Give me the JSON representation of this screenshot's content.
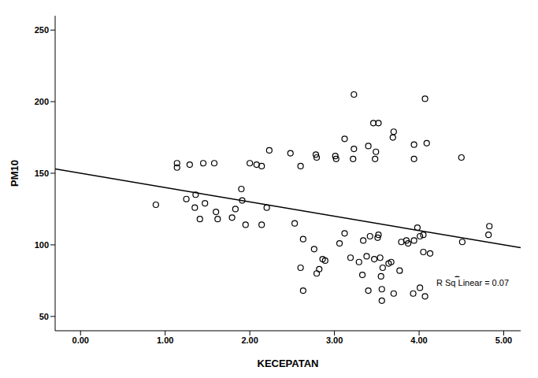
{
  "chart_data": {
    "type": "scatter",
    "x_label": "KECEPATAN",
    "y_label": "PM10",
    "annotation": "R Sq Linear = 0.07",
    "xlim": [
      -0.3,
      5.2
    ],
    "ylim": [
      40,
      260
    ],
    "xticks": [
      {
        "value": 0,
        "label": "0.00"
      },
      {
        "value": 1,
        "label": "1.00"
      },
      {
        "value": 2,
        "label": "2.00"
      },
      {
        "value": 3,
        "label": "3.00"
      },
      {
        "value": 4,
        "label": "4.00"
      },
      {
        "value": 5,
        "label": "5.00"
      }
    ],
    "yticks": [
      50,
      100,
      150,
      200,
      250
    ],
    "grid": false,
    "series": [
      {
        "type": "scatter",
        "marker": "circle",
        "color": "#000000",
        "x": [
          0.89,
          1.14,
          1.14,
          1.29,
          1.45,
          1.58,
          1.25,
          1.36,
          1.35,
          1.47,
          1.41,
          1.6,
          1.62,
          1.79,
          1.83,
          1.91,
          1.9,
          1.95,
          2.0,
          2.08,
          2.14,
          2.2,
          2.14,
          2.23,
          2.48,
          2.78,
          2.79,
          2.6,
          3.02,
          3.12,
          3.01,
          3.22,
          3.23,
          3.23,
          3.4,
          3.46,
          3.52,
          3.49,
          3.48,
          3.7,
          3.69,
          3.94,
          3.94,
          4.09,
          4.07,
          4.5,
          4.83,
          4.82,
          4.05,
          4.13,
          4.01,
          3.93,
          4.07,
          2.53,
          2.63,
          2.6,
          2.63,
          2.76,
          2.79,
          2.82,
          2.86,
          2.89,
          3.12,
          3.33,
          3.42,
          3.51,
          3.52,
          3.54,
          3.57,
          3.55,
          3.56,
          3.56,
          3.64,
          3.77,
          3.79,
          3.85,
          3.87,
          3.94,
          4.05,
          3.98,
          4.01,
          3.47,
          3.67,
          3.7,
          3.4,
          3.29,
          3.34,
          3.38,
          3.19,
          3.06,
          4.51,
          4.45
        ],
        "values": [
          128,
          157,
          154,
          156,
          157,
          157,
          132,
          135,
          126,
          129,
          118,
          123,
          118,
          119,
          125,
          131,
          139,
          114,
          157,
          156,
          155,
          126,
          114,
          166,
          164,
          163,
          161,
          155,
          160,
          174,
          162,
          160,
          167,
          205,
          169,
          185,
          185,
          165,
          160,
          179,
          175,
          160,
          170,
          171,
          202,
          161,
          113,
          107,
          95,
          94,
          106,
          66,
          64,
          115,
          104,
          84,
          68,
          97,
          80,
          83,
          90,
          89,
          108,
          79,
          106,
          105,
          107,
          91,
          84,
          78,
          69,
          61,
          87,
          82,
          102,
          103,
          101,
          103,
          107,
          112,
          70,
          90,
          88,
          66,
          68,
          88,
          103,
          92,
          91,
          101,
          102,
          76
        ]
      },
      {
        "type": "line",
        "line_style": "solid",
        "color": "#000000",
        "x": [
          -0.3,
          5.2
        ],
        "values": [
          153,
          98
        ]
      }
    ]
  }
}
